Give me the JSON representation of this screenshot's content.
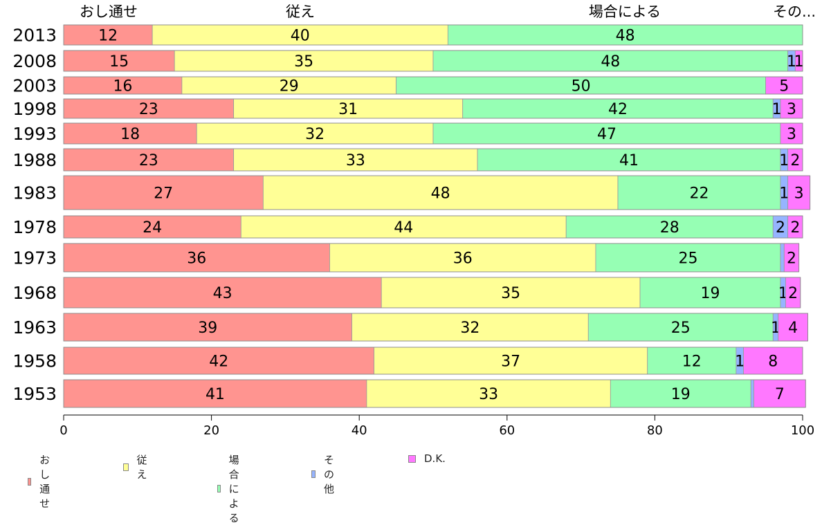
{
  "chart_data": {
    "type": "bar",
    "orientation": "horizontal",
    "stacked": true,
    "categories": [
      "2013",
      "2008",
      "2003",
      "1998",
      "1993",
      "1988",
      "1983",
      "1978",
      "1973",
      "1968",
      "1963",
      "1958",
      "1953"
    ],
    "series": [
      {
        "name": "おし通せ",
        "color": "#ff9490",
        "values": [
          12,
          15,
          16,
          23,
          18,
          23,
          27,
          24,
          36,
          43,
          39,
          42,
          41
        ]
      },
      {
        "name": "従え",
        "color": "#ffff96",
        "values": [
          40,
          35,
          29,
          31,
          32,
          33,
          48,
          44,
          36,
          35,
          32,
          37,
          33
        ]
      },
      {
        "name": "場合による",
        "color": "#96ffb4",
        "values": [
          48,
          48,
          50,
          42,
          47,
          41,
          22,
          28,
          25,
          19,
          25,
          12,
          19
        ]
      },
      {
        "name": "その他",
        "color": "#96b4ff",
        "values": [
          0,
          1,
          0,
          1,
          0,
          1,
          1,
          2,
          0.5,
          0.7,
          0.7,
          1,
          0.4
        ]
      },
      {
        "name": "D.K.",
        "color": "#ff78ff",
        "values": [
          0,
          1,
          5,
          3,
          3,
          2,
          3,
          2,
          2,
          2,
          4,
          8,
          7
        ]
      }
    ],
    "data_labels": [
      [
        "12",
        "40",
        "48",
        "",
        ""
      ],
      [
        "15",
        "35",
        "48",
        "1",
        "1"
      ],
      [
        "16",
        "29",
        "50",
        "",
        "5"
      ],
      [
        "23",
        "31",
        "42",
        "1",
        "3"
      ],
      [
        "18",
        "32",
        "47",
        "",
        "3"
      ],
      [
        "23",
        "33",
        "41",
        "1",
        "2"
      ],
      [
        "27",
        "48",
        "22",
        "1",
        "3"
      ],
      [
        "24",
        "44",
        "28",
        "2",
        "2"
      ],
      [
        "36",
        "36",
        "25",
        "",
        "2"
      ],
      [
        "43",
        "35",
        "19",
        "1",
        "2"
      ],
      [
        "39",
        "32",
        "25",
        "1",
        "4"
      ],
      [
        "42",
        "37",
        "12",
        "1",
        "8"
      ],
      [
        "41",
        "33",
        "19",
        "",
        "7"
      ]
    ],
    "top_labels": [
      "おし通せ",
      "従え",
      "場合による",
      "その..."
    ],
    "xlim": [
      0,
      100
    ],
    "xticks": [
      "0",
      "20",
      "40",
      "60",
      "80",
      "100"
    ],
    "grid": false,
    "legend_position": "bottom-left"
  }
}
